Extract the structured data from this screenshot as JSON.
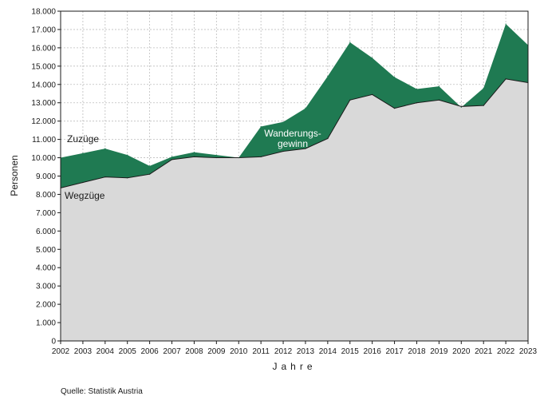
{
  "chart_data": {
    "type": "area",
    "ylabel": "Personen",
    "xlabel": "Jahre",
    "ylim": [
      0,
      18000
    ],
    "yticks": [
      0,
      1000,
      2000,
      3000,
      4000,
      5000,
      6000,
      7000,
      8000,
      9000,
      10000,
      11000,
      12000,
      13000,
      14000,
      15000,
      16000,
      17000,
      18000
    ],
    "ytick_labels": [
      "0",
      "1.000",
      "2.000",
      "3.000",
      "4.000",
      "5.000",
      "6.000",
      "7.000",
      "8.000",
      "9.000",
      "10.000",
      "11.000",
      "12.000",
      "13.000",
      "14.000",
      "15.000",
      "16.000",
      "17.000",
      "18.000"
    ],
    "x": [
      "2002",
      "2003",
      "2004",
      "2005",
      "2006",
      "2007",
      "2008",
      "2009",
      "2010",
      "2011",
      "2012",
      "2013",
      "2014",
      "2015",
      "2016",
      "2017",
      "2018",
      "2019",
      "2020",
      "2021",
      "2022",
      "2023"
    ],
    "grid": true,
    "series": [
      {
        "name": "Zuzüge",
        "color": "#1f7a52",
        "values": [
          10000,
          10250,
          10500,
          10150,
          9550,
          10050,
          10300,
          10150,
          10000,
          11700,
          11950,
          12700,
          14450,
          16300,
          15450,
          14400,
          13750,
          13900,
          12750,
          13800,
          17300,
          16150
        ]
      },
      {
        "name": "Wegzüge",
        "color": "#d9d9d9",
        "values": [
          8350,
          8650,
          8950,
          8900,
          9100,
          9900,
          10050,
          10000,
          10000,
          10050,
          10350,
          10500,
          11050,
          13150,
          13450,
          12700,
          13000,
          13150,
          12800,
          12850,
          14300,
          14100
        ]
      }
    ],
    "annotations": {
      "zuzuege_label": "Zuzüge",
      "wegzuege_label": "Wegzüge",
      "gain_label_line1": "Wanderungs-",
      "gain_label_line2": "gewinn"
    }
  },
  "source": "Quelle: Statistik Austria"
}
